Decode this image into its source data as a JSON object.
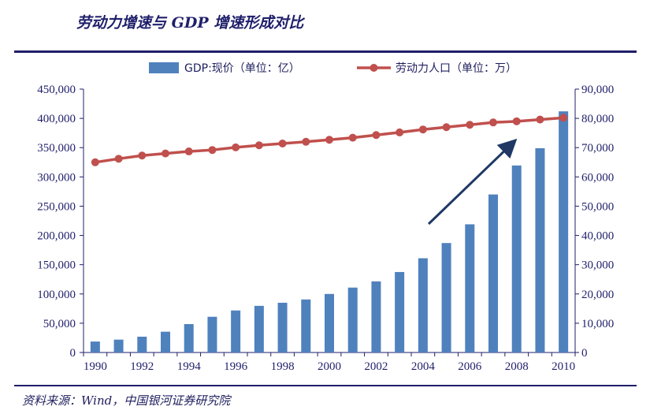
{
  "header": {
    "title": "劳动力增速与 GDP 增速形成对比"
  },
  "footer": {
    "source": "资料来源：Wind，中国银河证券研究院"
  },
  "colors": {
    "bar": "#4f81bd",
    "line": "#c0504d",
    "arrow": "#1f3864",
    "axis": "#1f1f6b"
  },
  "chart_data": {
    "type": "bar+line",
    "categories": [
      "1990",
      "1991",
      "1992",
      "1993",
      "1994",
      "1995",
      "1996",
      "1997",
      "1998",
      "1999",
      "2000",
      "2001",
      "2002",
      "2003",
      "2004",
      "2005",
      "2006",
      "2007",
      "2008",
      "2009",
      "2010"
    ],
    "x_tick_labels": [
      "1990",
      "1992",
      "1994",
      "1996",
      "1998",
      "2000",
      "2002",
      "2004",
      "2006",
      "2008",
      "2010"
    ],
    "series": [
      {
        "name": "GDP:现价（单位：亿）",
        "type": "bar",
        "axis": "left",
        "values": [
          18700,
          22000,
          27000,
          35500,
          48500,
          61000,
          71800,
          79700,
          85000,
          90600,
          100000,
          110900,
          121500,
          137500,
          161000,
          187000,
          219000,
          270000,
          319500,
          349000,
          412000
        ]
      },
      {
        "name": "劳动力人口（单位：万）",
        "type": "line",
        "axis": "right",
        "values": [
          65000,
          66200,
          67300,
          68000,
          68700,
          69200,
          70100,
          70800,
          71400,
          72000,
          72700,
          73400,
          74300,
          75200,
          76200,
          77000,
          77800,
          78600,
          79000,
          79600,
          80200
        ]
      }
    ],
    "y_left": {
      "min": 0,
      "max": 450000,
      "step": 50000
    },
    "y_right": {
      "min": 0,
      "max": 90000,
      "step": 10000
    },
    "legend_position": "top",
    "annotation": "upward arrow over 2004–2008 bars"
  }
}
